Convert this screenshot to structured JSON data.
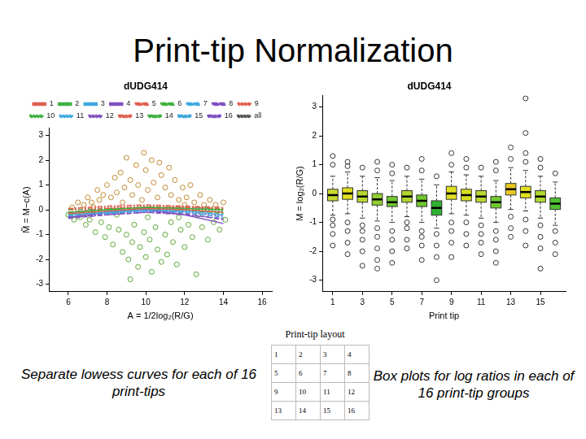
{
  "title": "Print-tip Normalization",
  "chart_data": [
    {
      "type": "scatter",
      "title": "dUDG414",
      "x_label": "A = 1/2log₂(R/G)",
      "y_label": "M̃ = M−c(A)",
      "xlim": [
        5,
        16.5
      ],
      "xticks": [
        6,
        8,
        10,
        12,
        14,
        16
      ],
      "ylim": [
        -3.3,
        3.3
      ],
      "yticks": [
        -3,
        -2,
        -1,
        0,
        1,
        2,
        3
      ],
      "grid": false,
      "legend": "top",
      "series": [
        {
          "type": "scatter",
          "marker": "circle",
          "color": "#c08a30",
          "x": [
            6.2,
            6.5,
            6.8,
            7.0,
            7.2,
            7.5,
            7.6,
            7.8,
            8.0,
            8.2,
            8.4,
            8.5,
            8.7,
            8.9,
            9.0,
            9.2,
            9.3,
            9.5,
            9.6,
            9.8,
            10.0,
            10.1,
            10.3,
            10.4,
            10.6,
            10.8,
            11.0,
            11.2,
            11.3,
            11.5,
            11.7,
            11.9,
            12.1,
            12.3,
            12.5,
            12.8,
            13.0,
            13.3,
            13.6,
            14.0,
            9.9,
            10.7,
            8.8,
            7.3,
            12.0
          ],
          "values": [
            0.1,
            0.3,
            0.2,
            0.5,
            0.3,
            0.8,
            0.4,
            0.6,
            1.0,
            0.5,
            1.3,
            0.7,
            1.5,
            0.9,
            2.1,
            1.2,
            0.6,
            1.8,
            1.0,
            0.4,
            1.6,
            0.8,
            2.0,
            1.1,
            0.5,
            1.4,
            0.9,
            1.7,
            0.6,
            1.2,
            0.4,
            0.9,
            0.5,
            1.0,
            0.3,
            0.6,
            0.2,
            0.4,
            0.2,
            0.3,
            2.3,
            1.9,
            0.3,
            0.1,
            0.2
          ]
        },
        {
          "type": "scatter",
          "marker": "circle",
          "color": "#5aa832",
          "x": [
            6.0,
            6.3,
            6.6,
            6.9,
            7.1,
            7.4,
            7.7,
            7.9,
            8.1,
            8.3,
            8.6,
            8.8,
            9.0,
            9.1,
            9.3,
            9.4,
            9.6,
            9.7,
            9.9,
            10.0,
            10.2,
            10.3,
            10.5,
            10.6,
            10.8,
            11.0,
            11.1,
            11.3,
            11.4,
            11.6,
            11.8,
            12.0,
            12.2,
            12.4,
            12.6,
            12.9,
            13.2,
            13.5,
            13.8,
            14.1,
            10.1,
            8.5,
            11.7,
            9.2,
            12.7
          ],
          "values": [
            -0.2,
            -0.4,
            -0.3,
            -0.6,
            -0.4,
            -0.9,
            -0.5,
            -1.1,
            -0.7,
            -1.4,
            -0.8,
            -1.7,
            -1.0,
            -2.0,
            -1.3,
            -0.6,
            -2.3,
            -1.5,
            -0.9,
            -1.9,
            -1.2,
            -2.5,
            -0.7,
            -1.6,
            -2.1,
            -1.0,
            -1.8,
            -0.5,
            -1.3,
            -2.2,
            -0.8,
            -1.5,
            -0.6,
            -1.1,
            -2.6,
            -0.7,
            -1.2,
            -0.5,
            -0.8,
            -0.4,
            -0.3,
            -0.2,
            -0.3,
            -2.8,
            -0.2
          ]
        },
        {
          "type": "line",
          "name": "1",
          "color": "#e06050",
          "line_style": "solid",
          "x": [
            6,
            8,
            10,
            12,
            14
          ],
          "values": [
            -0.15,
            -0.05,
            0.05,
            0.0,
            -0.1
          ]
        },
        {
          "type": "line",
          "name": "2",
          "color": "#40b040",
          "line_style": "solid",
          "x": [
            6,
            8,
            10,
            12,
            14
          ],
          "values": [
            -0.1,
            0.0,
            0.1,
            0.05,
            0.0
          ]
        },
        {
          "type": "line",
          "name": "3",
          "color": "#40a8e0",
          "line_style": "solid",
          "x": [
            6,
            8,
            10,
            12,
            14
          ],
          "values": [
            -0.2,
            -0.1,
            0.0,
            -0.05,
            -0.2
          ]
        },
        {
          "type": "line",
          "name": "4",
          "color": "#8050c0",
          "line_style": "solid",
          "x": [
            6,
            8,
            10,
            12,
            14
          ],
          "values": [
            -0.3,
            -0.1,
            0.0,
            -0.2,
            -0.55
          ]
        },
        {
          "type": "line",
          "name": "5",
          "color": "#e06050",
          "line_style": "dashed",
          "x": [
            6,
            8,
            10,
            12,
            14
          ],
          "values": [
            -0.1,
            0.05,
            0.1,
            0.1,
            0.05
          ]
        },
        {
          "type": "line",
          "name": "6",
          "color": "#40b040",
          "line_style": "dashed",
          "x": [
            6,
            8,
            10,
            12,
            14
          ],
          "values": [
            -0.2,
            -0.05,
            0.05,
            0.0,
            -0.15
          ]
        },
        {
          "type": "line",
          "name": "7",
          "color": "#40a8e0",
          "line_style": "dashed",
          "x": [
            6,
            8,
            10,
            12,
            14
          ],
          "values": [
            -0.25,
            -0.15,
            -0.05,
            -0.1,
            -0.3
          ]
        },
        {
          "type": "line",
          "name": "8",
          "color": "#8050c0",
          "line_style": "dashed",
          "x": [
            6,
            8,
            10,
            12,
            14
          ],
          "values": [
            -0.35,
            -0.2,
            -0.1,
            -0.15,
            -0.4
          ]
        },
        {
          "type": "line",
          "name": "9",
          "color": "#e06050",
          "line_style": "dotted",
          "x": [
            6,
            8,
            10,
            12,
            14
          ],
          "values": [
            0.0,
            0.1,
            0.15,
            0.1,
            0.0
          ]
        },
        {
          "type": "line",
          "name": "10",
          "color": "#40b040",
          "line_style": "dotted",
          "x": [
            6,
            8,
            10,
            12,
            14
          ],
          "values": [
            -0.1,
            0.0,
            0.05,
            0.05,
            -0.05
          ]
        },
        {
          "type": "line",
          "name": "11",
          "color": "#40a8e0",
          "line_style": "dotted",
          "x": [
            6,
            8,
            10,
            12,
            14
          ],
          "values": [
            -0.15,
            -0.05,
            0.0,
            -0.05,
            -0.1
          ]
        },
        {
          "type": "line",
          "name": "12",
          "color": "#8050c0",
          "line_style": "dotted",
          "x": [
            6,
            8,
            10,
            12,
            14
          ],
          "values": [
            -0.3,
            -0.15,
            -0.05,
            -0.1,
            -0.25
          ]
        },
        {
          "type": "line",
          "name": "13",
          "color": "#e06050",
          "line_style": "dashdot",
          "x": [
            6,
            8,
            10,
            12,
            14
          ],
          "values": [
            0.05,
            0.15,
            0.2,
            0.15,
            0.1
          ]
        },
        {
          "type": "line",
          "name": "14",
          "color": "#40b040",
          "line_style": "dashdot",
          "x": [
            6,
            8,
            10,
            12,
            14
          ],
          "values": [
            0.0,
            0.05,
            0.1,
            0.1,
            0.05
          ]
        },
        {
          "type": "line",
          "name": "15",
          "color": "#40a8e0",
          "line_style": "dashdot",
          "x": [
            6,
            8,
            10,
            12,
            14
          ],
          "values": [
            -0.1,
            0.0,
            0.05,
            0.0,
            -0.1
          ]
        },
        {
          "type": "line",
          "name": "16",
          "color": "#8050c0",
          "line_style": "dashdot",
          "x": [
            6,
            8,
            10,
            12,
            14
          ],
          "values": [
            -0.3,
            -0.2,
            -0.1,
            -0.2,
            -0.35
          ]
        },
        {
          "type": "line",
          "name": "all",
          "color": "#555555",
          "line_style": "dotted",
          "x": [
            6,
            8,
            10,
            12,
            14
          ],
          "values": [
            -0.15,
            -0.05,
            0.05,
            0.0,
            -0.1
          ]
        }
      ]
    },
    {
      "type": "box",
      "title": "dUDG414",
      "x_label": "Print tip",
      "y_label": "M = log₂(R/G)",
      "xlim": [
        0.3,
        16.7
      ],
      "xticks": [
        1,
        3,
        5,
        7,
        9,
        11,
        13,
        15
      ],
      "ylim": [
        -3.4,
        3.4
      ],
      "yticks": [
        -3,
        -2,
        -1,
        0,
        1,
        2,
        3
      ],
      "grid": false,
      "colors": [
        "#c8d830",
        "#e0e020",
        "#b8d830",
        "#90d030",
        "#70c830",
        "#b0d830",
        "#70c830",
        "#30b030",
        "#e0e020",
        "#d8e020",
        "#b8d830",
        "#70c830",
        "#e8c820",
        "#e0e020",
        "#b0d830",
        "#50c030"
      ],
      "boxes": [
        {
          "x": 1,
          "whisker_low": -0.75,
          "q1": -0.25,
          "median": -0.05,
          "q3": 0.15,
          "whisker_high": 0.6,
          "outliers": [
            1.0,
            1.3,
            -0.9,
            -1.1,
            -1.4,
            -1.8
          ]
        },
        {
          "x": 2,
          "whisker_low": -0.7,
          "q1": -0.2,
          "median": 0.0,
          "q3": 0.2,
          "whisker_high": 0.75,
          "outliers": [
            1.1,
            0.95,
            -1.0,
            -1.3,
            -1.7,
            -2.1
          ]
        },
        {
          "x": 3,
          "whisker_low": -0.85,
          "q1": -0.3,
          "median": -0.1,
          "q3": 0.1,
          "whisker_high": 0.6,
          "outliers": [
            0.9,
            -1.1,
            -1.3,
            -1.6,
            -2.0,
            -2.5
          ]
        },
        {
          "x": 4,
          "whisker_low": -0.95,
          "q1": -0.4,
          "median": -0.2,
          "q3": 0.0,
          "whisker_high": 0.55,
          "outliers": [
            0.8,
            1.1,
            -1.2,
            -1.5,
            -1.9,
            -2.3,
            -2.6
          ]
        },
        {
          "x": 5,
          "whisker_low": -1.0,
          "q1": -0.45,
          "median": -0.3,
          "q3": -0.1,
          "whisker_high": 0.45,
          "outliers": [
            0.7,
            1.0,
            -1.3,
            -1.6,
            -2.0,
            -2.4
          ]
        },
        {
          "x": 6,
          "whisker_low": -0.8,
          "q1": -0.3,
          "median": -0.1,
          "q3": 0.1,
          "whisker_high": 0.6,
          "outliers": [
            0.9,
            -1.0,
            -1.2,
            -1.6,
            -1.9
          ]
        },
        {
          "x": 7,
          "whisker_low": -1.0,
          "q1": -0.45,
          "median": -0.25,
          "q3": -0.05,
          "whisker_high": 0.5,
          "outliers": [
            0.8,
            1.2,
            -1.3,
            -1.5,
            -1.8,
            -2.3
          ]
        },
        {
          "x": 8,
          "whisker_low": -1.2,
          "q1": -0.75,
          "median": -0.5,
          "q3": -0.25,
          "whisker_high": 0.3,
          "outliers": [
            0.6,
            -1.4,
            -1.8,
            -2.2,
            -3.0
          ]
        },
        {
          "x": 9,
          "whisker_low": -0.7,
          "q1": -0.2,
          "median": 0.0,
          "q3": 0.25,
          "whisker_high": 0.75,
          "outliers": [
            1.0,
            1.4,
            -1.0,
            -1.3,
            -1.7,
            -2.2
          ]
        },
        {
          "x": 10,
          "whisker_low": -0.75,
          "q1": -0.25,
          "median": -0.05,
          "q3": 0.15,
          "whisker_high": 0.65,
          "outliers": [
            0.9,
            1.2,
            -1.0,
            -1.4,
            -1.8
          ]
        },
        {
          "x": 11,
          "whisker_low": -0.85,
          "q1": -0.3,
          "median": -0.1,
          "q3": 0.1,
          "whisker_high": 0.6,
          "outliers": [
            0.9,
            -1.1,
            -1.4,
            -1.7,
            -2.1
          ]
        },
        {
          "x": 12,
          "whisker_low": -1.0,
          "q1": -0.5,
          "median": -0.3,
          "q3": -0.1,
          "whisker_high": 0.45,
          "outliers": [
            0.8,
            1.1,
            -1.3,
            -1.6,
            -2.0,
            -2.4
          ]
        },
        {
          "x": 13,
          "whisker_low": -0.55,
          "q1": -0.05,
          "median": 0.15,
          "q3": 0.35,
          "whisker_high": 0.9,
          "outliers": [
            1.2,
            1.6,
            -0.8,
            -1.2,
            -1.5
          ]
        },
        {
          "x": 14,
          "whisker_low": -0.6,
          "q1": -0.15,
          "median": 0.05,
          "q3": 0.25,
          "whisker_high": 0.8,
          "outliers": [
            1.1,
            1.4,
            2.1,
            3.3,
            -0.9,
            -1.3,
            -1.8
          ]
        },
        {
          "x": 15,
          "whisker_low": -0.85,
          "q1": -0.3,
          "median": -0.1,
          "q3": 0.1,
          "whisker_high": 0.6,
          "outliers": [
            0.9,
            1.2,
            -1.1,
            -1.5,
            -1.9,
            -2.6
          ]
        },
        {
          "x": 16,
          "whisker_low": -1.1,
          "q1": -0.55,
          "median": -0.35,
          "q3": -0.15,
          "whisker_high": 0.4,
          "outliers": [
            0.7,
            -1.3,
            -1.7,
            -2.1
          ]
        }
      ]
    }
  ],
  "print_tip_layout": {
    "title": "Print-tip layout",
    "rows": [
      [
        1,
        2,
        3,
        4
      ],
      [
        5,
        6,
        7,
        8
      ],
      [
        9,
        10,
        11,
        12
      ],
      [
        13,
        14,
        15,
        16
      ]
    ]
  },
  "captions": [
    "Separate lowess curves for each of 16 print-tips",
    "Box plots for log ratios in each of 16 print-tip groups"
  ]
}
